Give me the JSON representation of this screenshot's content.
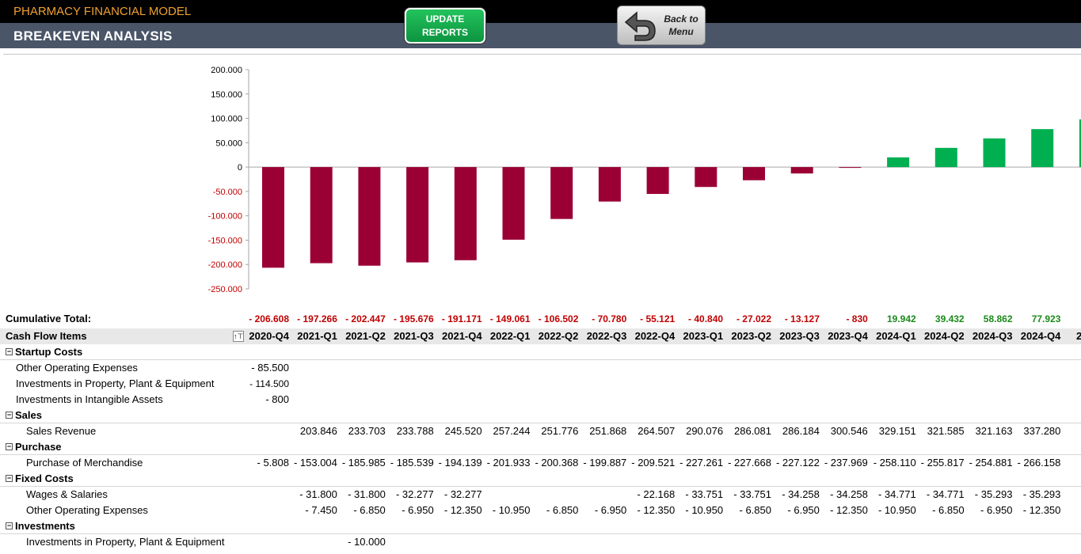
{
  "header": {
    "app_title": "PHARMACY FINANCIAL MODEL",
    "page_title": "BREAKEVEN ANALYSIS",
    "update_button": [
      "UPDATE",
      "REPORTS"
    ],
    "back_button": [
      "Back to",
      "Menu"
    ],
    "colors": {
      "app_title": "#f0a030",
      "subbar": "#4a5568",
      "update_button": "#12a84a"
    }
  },
  "chart_data": {
    "type": "bar",
    "categories": [
      "2020-Q4",
      "2021-Q1",
      "2021-Q2",
      "2021-Q3",
      "2021-Q4",
      "2022-Q1",
      "2022-Q2",
      "2022-Q3",
      "2022-Q4",
      "2023-Q1",
      "2023-Q2",
      "2023-Q3",
      "2023-Q4",
      "2024-Q1",
      "2024-Q2",
      "2024-Q3",
      "2024-Q4",
      "2025-Q1"
    ],
    "values": [
      -206608,
      -197266,
      -202447,
      -195676,
      -191171,
      -149061,
      -106502,
      -70780,
      -55121,
      -40840,
      -27022,
      -13127,
      -830,
      19942,
      39432,
      58862,
      77923,
      98000
    ],
    "ylim": [
      -250000,
      200000
    ],
    "yticks": [
      200000,
      150000,
      100000,
      50000,
      0,
      -50000,
      -100000,
      -150000,
      -200000,
      -250000
    ],
    "ytick_labels": [
      "200.000",
      "150.000",
      "100.000",
      "50.000",
      "0",
      "-50.000",
      "-100.000",
      "-150.000",
      "-200.000",
      "-250.000"
    ],
    "negative_color": "#9b0034",
    "positive_color": "#00b050",
    "grid": false
  },
  "table": {
    "cumulative_label": "Cumulative Total:",
    "cumulative": [
      "- 206.608",
      "- 197.266",
      "- 202.447",
      "- 195.676",
      "- 191.171",
      "- 149.061",
      "- 106.502",
      "- 70.780",
      "- 55.121",
      "- 40.840",
      "- 27.022",
      "- 13.127",
      "- 830",
      "19.942",
      "39.432",
      "58.862",
      "77.923"
    ],
    "header_label": "Cash Flow Items",
    "filter_icon": "↑⊤",
    "columns": [
      "2020-Q4",
      "2021-Q1",
      "2021-Q2",
      "2021-Q3",
      "2021-Q4",
      "2022-Q1",
      "2022-Q2",
      "2022-Q3",
      "2022-Q4",
      "2023-Q1",
      "2023-Q2",
      "2023-Q3",
      "2023-Q4",
      "2024-Q1",
      "2024-Q2",
      "2024-Q3",
      "2024-Q4"
    ],
    "partial_column": "2",
    "rows": [
      {
        "type": "section",
        "label": "Startup Costs",
        "values": []
      },
      {
        "type": "item",
        "indent": 1,
        "label": "Other Operating Expenses",
        "values": [
          "- 85.500"
        ]
      },
      {
        "type": "item",
        "indent": 1,
        "label": "Investments in Property, Plant & Equipment",
        "values": [
          "- 114.500"
        ],
        "small": true
      },
      {
        "type": "item",
        "indent": 1,
        "label": "Investments in Intangible Assets",
        "values": [
          "- 800"
        ]
      },
      {
        "type": "section",
        "label": "Sales",
        "values": []
      },
      {
        "type": "item",
        "indent": 2,
        "label": "Sales Revenue",
        "values": [
          "",
          "203.846",
          "233.703",
          "233.788",
          "245.520",
          "257.244",
          "251.776",
          "251.868",
          "264.507",
          "290.076",
          "286.081",
          "286.184",
          "300.546",
          "329.151",
          "321.585",
          "321.163",
          "337.280"
        ]
      },
      {
        "type": "section",
        "label": "Purchase",
        "values": []
      },
      {
        "type": "item",
        "indent": 2,
        "label": "Purchase of Merchandise",
        "values": [
          "- 5.808",
          "- 153.004",
          "- 185.985",
          "- 185.539",
          "- 194.139",
          "- 201.933",
          "- 200.368",
          "- 199.887",
          "- 209.521",
          "- 227.261",
          "- 227.668",
          "- 227.122",
          "- 237.969",
          "- 258.110",
          "- 255.817",
          "- 254.881",
          "- 266.158"
        ]
      },
      {
        "type": "section",
        "label": "Fixed Costs",
        "values": []
      },
      {
        "type": "item",
        "indent": 2,
        "label": "Wages & Salaries",
        "values": [
          "",
          "- 31.800",
          "- 31.800",
          "- 32.277",
          "- 32.277",
          "",
          "",
          "",
          "- 22.168",
          "- 33.751",
          "- 33.751",
          "- 34.258",
          "- 34.258",
          "- 34.771",
          "- 34.771",
          "- 35.293",
          "- 35.293"
        ]
      },
      {
        "type": "item",
        "indent": 2,
        "label": "Other Operating Expenses",
        "values": [
          "",
          "- 7.450",
          "- 6.850",
          "- 6.950",
          "- 12.350",
          "- 10.950",
          "- 6.850",
          "- 6.950",
          "- 12.350",
          "- 10.950",
          "- 6.850",
          "- 6.950",
          "- 12.350",
          "- 10.950",
          "- 6.850",
          "- 6.950",
          "- 12.350"
        ]
      },
      {
        "type": "section",
        "label": "Investments",
        "values": []
      },
      {
        "type": "item",
        "indent": 2,
        "label": "Investments in Property, Plant & Equipment",
        "values": [
          "",
          "",
          "- 10.000"
        ]
      }
    ]
  }
}
